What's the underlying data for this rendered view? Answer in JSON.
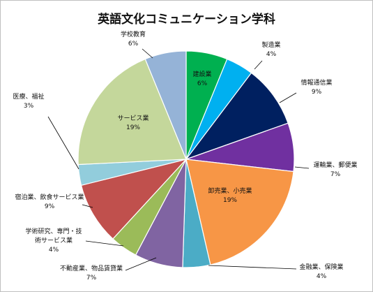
{
  "chart_data": {
    "type": "pie",
    "title": "英語文化コミュニケーション学科",
    "unit": "%",
    "slices": [
      {
        "name": "建設業",
        "value": 6,
        "label": "6%",
        "color": "#00b050"
      },
      {
        "name": "製造業",
        "value": 4,
        "label": "4%",
        "color": "#00b0f0"
      },
      {
        "name": "情報通信業",
        "value": 9,
        "label": "9%",
        "color": "#002060"
      },
      {
        "name": "運輸業、郵便業",
        "value": 7,
        "label": "7%",
        "color": "#7030a0"
      },
      {
        "name": "卸売業、小売業",
        "value": 19,
        "label": "19%",
        "color": "#f79646"
      },
      {
        "name": "金融業、保険業",
        "value": 4,
        "label": "4%",
        "color": "#4bacc6"
      },
      {
        "name": "不動産業、物品賃貸業",
        "value": 7,
        "label": "7%",
        "color": "#8064a2"
      },
      {
        "name": "学術研究、専門・技術サービス業",
        "value": 4,
        "label": "4%",
        "color": "#9bbb59"
      },
      {
        "name": "宿泊業、飲食サービス業",
        "value": 9,
        "label": "9%",
        "color": "#c0504d"
      },
      {
        "name": "医療、福祉",
        "value": 3,
        "label": "3%",
        "color": "#92cddc"
      },
      {
        "name": "サービス業",
        "value": 19,
        "label": "19%",
        "color": "#c4d79b"
      },
      {
        "name": "学校教育",
        "value": 6,
        "label": "6%",
        "color": "#95b3d7"
      }
    ],
    "label_lines": [
      [
        "建設業",
        "6%"
      ],
      [
        "製造業",
        "4%"
      ],
      [
        "情報通信業",
        "9%"
      ],
      [
        "運輸業、郵便業",
        "7%"
      ],
      [
        "卸売業、小売業",
        "19%"
      ],
      [
        "金融業、保険業",
        "4%"
      ],
      [
        "不動産業、物品賃貸業",
        "7%"
      ],
      [
        "学術研究、専門・技",
        "術サービス業",
        "4%"
      ],
      [
        "宿泊業、飲食サービス業",
        "9%"
      ],
      [
        "医療、福祉",
        "3%"
      ],
      [
        "サービス業",
        "19%"
      ],
      [
        "学校教育",
        "6%"
      ]
    ],
    "legend": "none"
  }
}
